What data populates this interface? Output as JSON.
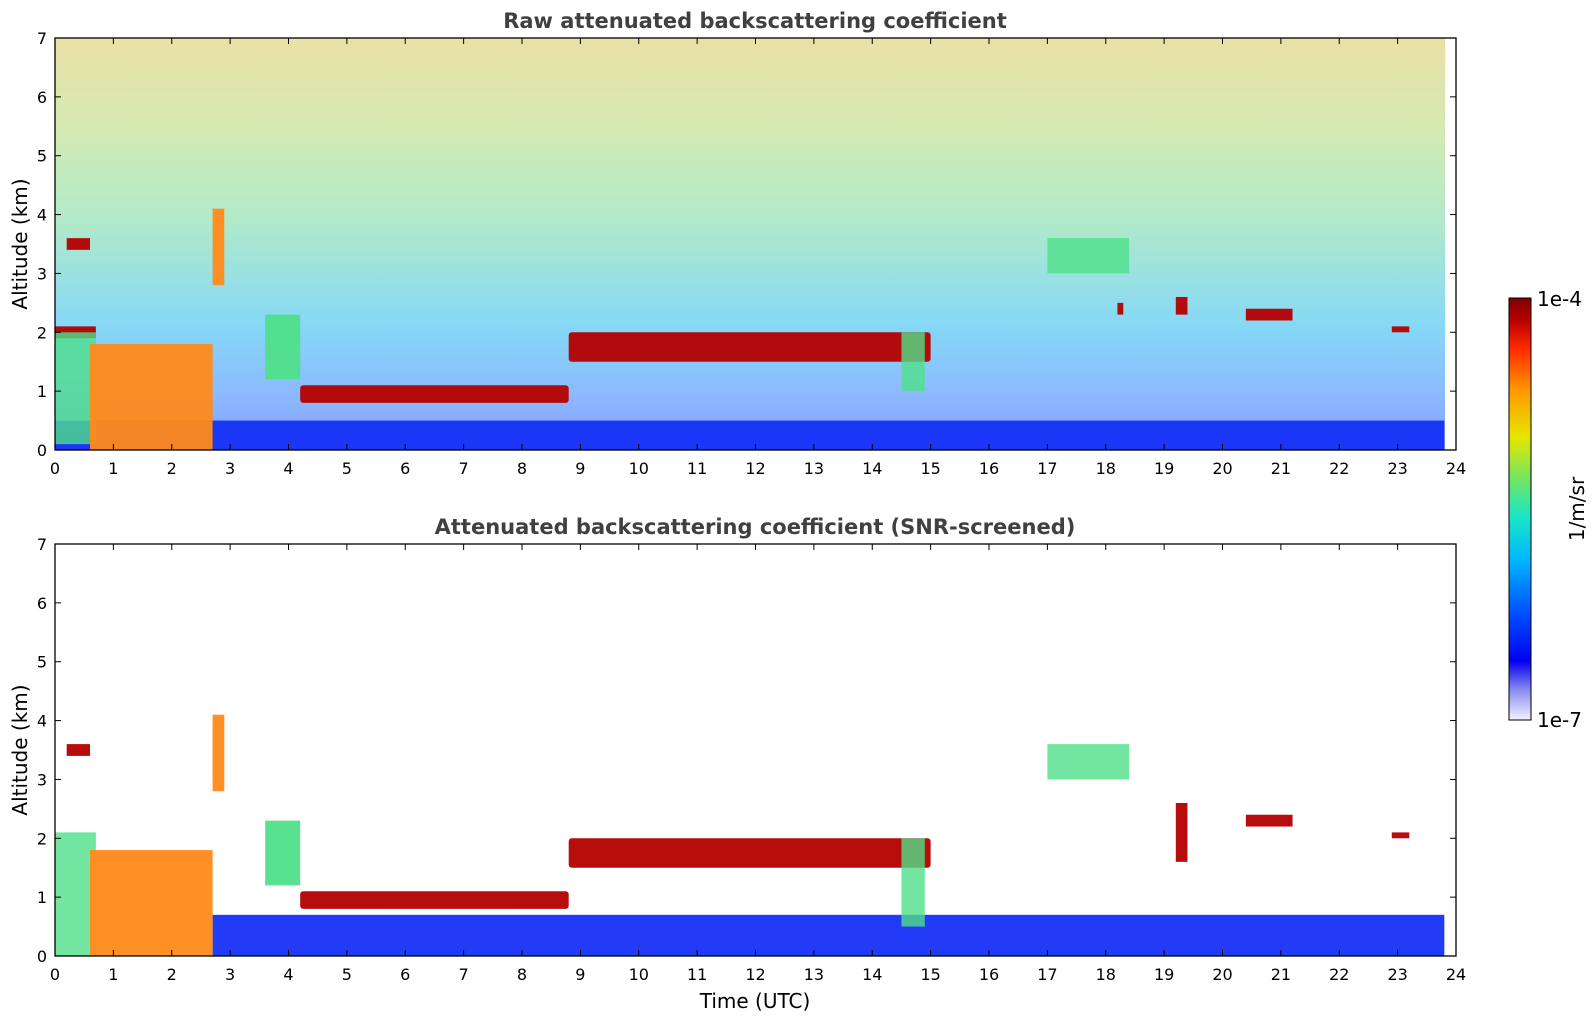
{
  "chart_data": [
    {
      "type": "heatmap",
      "title": "Raw attenuated backscattering coefficient",
      "xlabel": "",
      "ylabel": "Altitude (km)",
      "xlim": [
        0,
        24
      ],
      "ylim": [
        0,
        7
      ],
      "xticks": [
        "0",
        "1",
        "2",
        "3",
        "4",
        "5",
        "6",
        "7",
        "8",
        "9",
        "10",
        "11",
        "12",
        "13",
        "14",
        "15",
        "16",
        "17",
        "18",
        "19",
        "20",
        "21",
        "22",
        "23",
        "24"
      ],
      "yticks": [
        "0",
        "1",
        "2",
        "3",
        "4",
        "5",
        "6",
        "7"
      ],
      "data_end_hour": 23.8,
      "features": [
        {
          "kind": "boundary-layer",
          "x": [
            0,
            23.8
          ],
          "y_top": 0.5,
          "level": "low"
        },
        {
          "kind": "cloud",
          "x": [
            0.2,
            0.6
          ],
          "y": [
            3.4,
            3.6
          ],
          "level": "max"
        },
        {
          "kind": "cloud",
          "x": [
            0,
            0.7
          ],
          "y": [
            1.9,
            2.1
          ],
          "level": "max"
        },
        {
          "kind": "aerosol",
          "x": [
            0,
            0.7
          ],
          "y": [
            0.1,
            2.0
          ],
          "level": "medium"
        },
        {
          "kind": "cloud",
          "x": [
            0.6,
            2.7
          ],
          "y": [
            0,
            1.8
          ],
          "level": "high"
        },
        {
          "kind": "cloud",
          "x": [
            2.7,
            2.9
          ],
          "y": [
            2.8,
            4.1
          ],
          "level": "high"
        },
        {
          "kind": "cloud",
          "x": [
            3.6,
            4.2
          ],
          "y": [
            1.2,
            2.3
          ],
          "level": "medium"
        },
        {
          "kind": "cloud-base",
          "x": [
            4.2,
            8.8
          ],
          "y": [
            0.8,
            1.1
          ],
          "level": "max"
        },
        {
          "kind": "cloud-base",
          "x": [
            8.8,
            15.0
          ],
          "y": [
            1.5,
            2.0
          ],
          "level": "max"
        },
        {
          "kind": "aerosol",
          "x": [
            14.5,
            14.9
          ],
          "y": [
            1.0,
            2.0
          ],
          "level": "medium"
        },
        {
          "kind": "aerosol",
          "x": [
            17.0,
            18.4
          ],
          "y": [
            3.0,
            3.6
          ],
          "level": "medium"
        },
        {
          "kind": "cloud",
          "x": [
            18.2,
            18.3
          ],
          "y": [
            2.3,
            2.5
          ],
          "level": "max"
        },
        {
          "kind": "cloud",
          "x": [
            19.2,
            19.4
          ],
          "y": [
            2.3,
            2.6
          ],
          "level": "max"
        },
        {
          "kind": "cloud",
          "x": [
            20.4,
            21.2
          ],
          "y": [
            2.2,
            2.4
          ],
          "level": "max"
        },
        {
          "kind": "cloud",
          "x": [
            22.9,
            23.2
          ],
          "y": [
            2.0,
            2.1
          ],
          "level": "max"
        },
        {
          "kind": "noise",
          "x": [
            0,
            23.8
          ],
          "y": [
            0.5,
            7.0
          ],
          "level": "increasing-with-altitude"
        }
      ]
    },
    {
      "type": "heatmap",
      "title": "Attenuated backscattering coefficient (SNR-screened)",
      "xlabel": "Time (UTC)",
      "ylabel": "Altitude (km)",
      "xlim": [
        0,
        24
      ],
      "ylim": [
        0,
        7
      ],
      "xticks": [
        "0",
        "1",
        "2",
        "3",
        "4",
        "5",
        "6",
        "7",
        "8",
        "9",
        "10",
        "11",
        "12",
        "13",
        "14",
        "15",
        "16",
        "17",
        "18",
        "19",
        "20",
        "21",
        "22",
        "23",
        "24"
      ],
      "yticks": [
        "0",
        "1",
        "2",
        "3",
        "4",
        "5",
        "6",
        "7"
      ],
      "data_end_hour": 23.8,
      "features": [
        {
          "kind": "boundary-layer",
          "x": [
            2.7,
            23.8
          ],
          "y_top": 0.7,
          "level": "low"
        },
        {
          "kind": "cloud",
          "x": [
            0.2,
            0.6
          ],
          "y": [
            3.4,
            3.6
          ],
          "level": "max"
        },
        {
          "kind": "aerosol",
          "x": [
            0,
            0.7
          ],
          "y": [
            0,
            2.1
          ],
          "level": "medium"
        },
        {
          "kind": "cloud",
          "x": [
            0.6,
            2.7
          ],
          "y": [
            0,
            1.8
          ],
          "level": "high"
        },
        {
          "kind": "cloud",
          "x": [
            2.7,
            2.9
          ],
          "y": [
            2.8,
            4.1
          ],
          "level": "high"
        },
        {
          "kind": "cloud",
          "x": [
            3.6,
            4.2
          ],
          "y": [
            1.2,
            2.3
          ],
          "level": "medium"
        },
        {
          "kind": "cloud-base",
          "x": [
            4.2,
            8.8
          ],
          "y": [
            0.8,
            1.1
          ],
          "level": "max"
        },
        {
          "kind": "cloud-base",
          "x": [
            8.8,
            15.0
          ],
          "y": [
            1.5,
            2.0
          ],
          "level": "max"
        },
        {
          "kind": "aerosol",
          "x": [
            14.5,
            14.9
          ],
          "y": [
            0.5,
            2.0
          ],
          "level": "medium"
        },
        {
          "kind": "aerosol",
          "x": [
            17.0,
            18.4
          ],
          "y": [
            3.0,
            3.6
          ],
          "level": "medium"
        },
        {
          "kind": "cloud",
          "x": [
            19.2,
            19.4
          ],
          "y": [
            1.6,
            2.6
          ],
          "level": "max"
        },
        {
          "kind": "cloud",
          "x": [
            20.4,
            21.2
          ],
          "y": [
            2.2,
            2.4
          ],
          "level": "max"
        },
        {
          "kind": "cloud",
          "x": [
            22.9,
            23.2
          ],
          "y": [
            2.0,
            2.1
          ],
          "level": "max"
        }
      ]
    }
  ],
  "colorbar": {
    "label": "1/m/sr",
    "max_label": "1e-4",
    "min_label": "1e-7",
    "scale": "log",
    "colormap": [
      "#f2f2fc",
      "#8c8cf0",
      "#0000ee",
      "#0055ff",
      "#00b7ff",
      "#18e6c8",
      "#7be65a",
      "#e6e600",
      "#ff9a00",
      "#ff2a00",
      "#b40000",
      "#800000"
    ]
  }
}
